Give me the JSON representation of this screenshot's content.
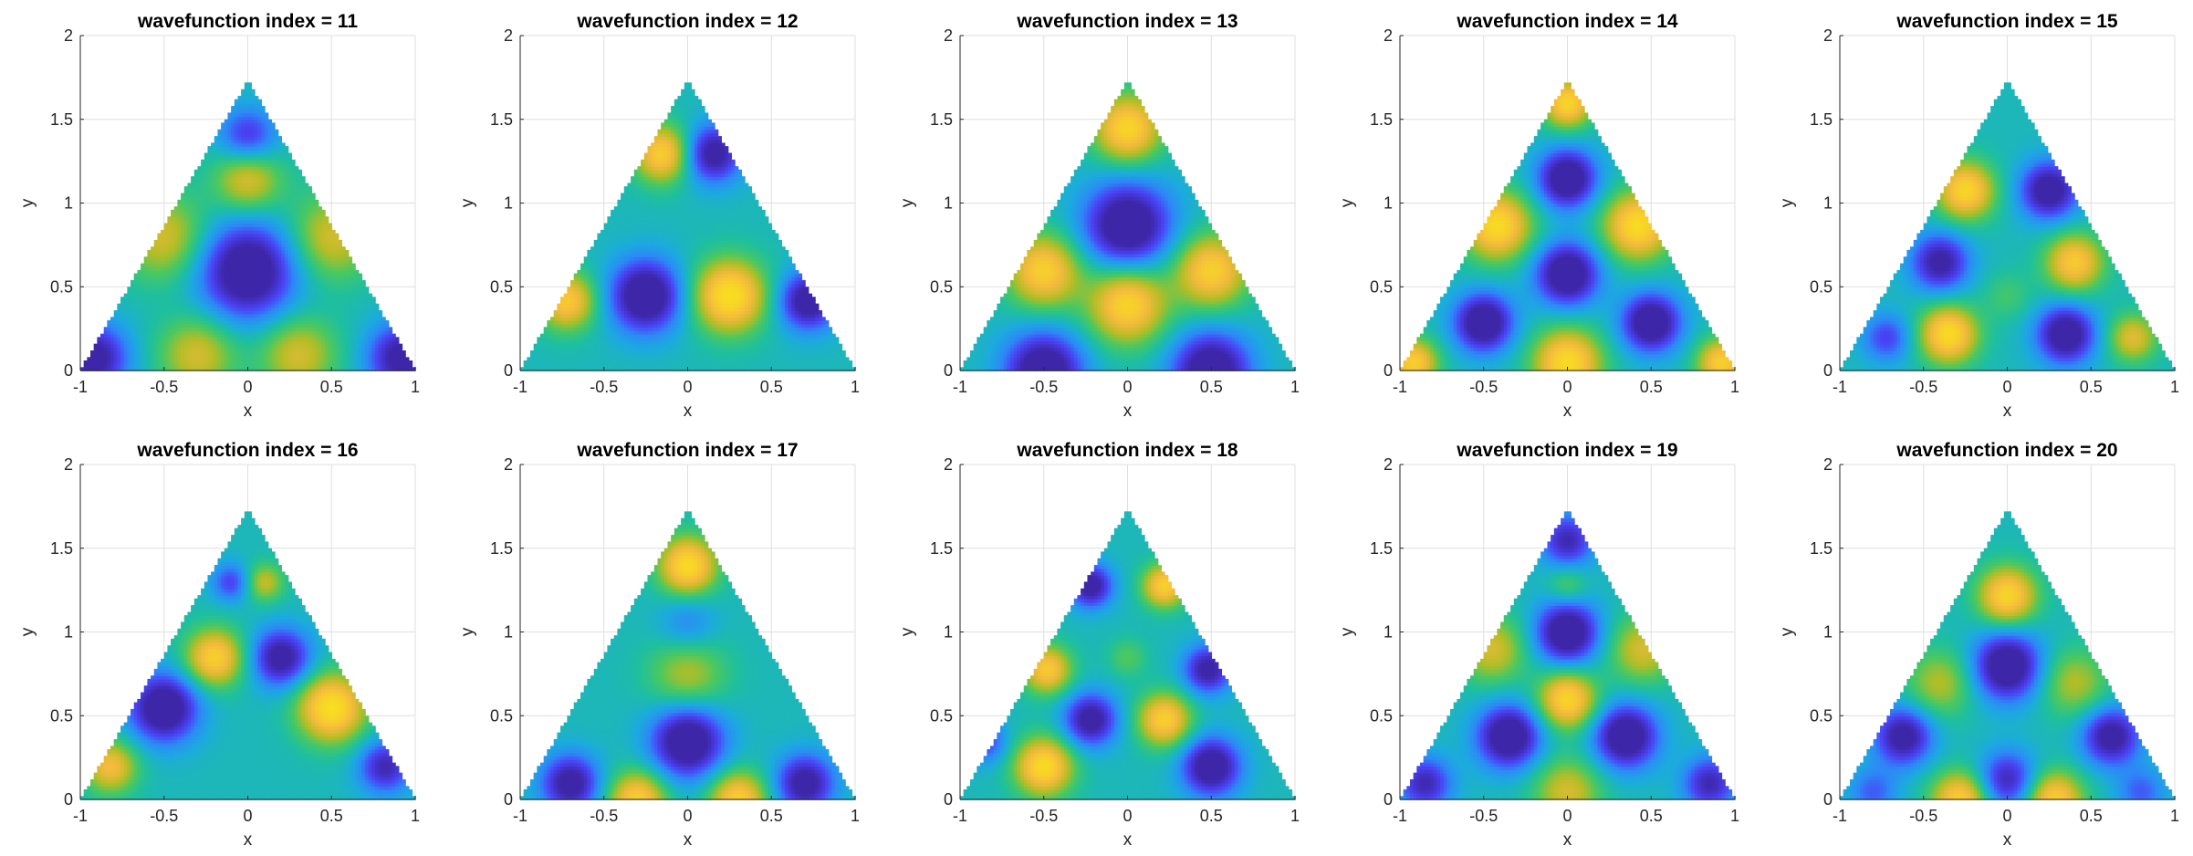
{
  "colormap": [
    "#3e26a8",
    "#4a42f4",
    "#2e87f7",
    "#1caadf",
    "#1ebf9f",
    "#4ac860",
    "#b3bd26",
    "#f4ba3d",
    "#f9e01e",
    "#f9fb0e"
  ],
  "chart_data": [
    {
      "type": "heatmap",
      "title": "wavefunction index = 11",
      "xlabel": "x",
      "ylabel": "y",
      "xlim": [
        -1,
        1
      ],
      "ylim": [
        0,
        2
      ],
      "xticks": [
        "-1",
        "-0.5",
        "0",
        "0.5",
        "1"
      ],
      "yticks": [
        "0",
        "0.5",
        "1",
        "1.5",
        "2"
      ],
      "grid": true,
      "domain": "triangle",
      "blobs": [
        [
          0,
          0.6,
          -1.0,
          0.2
        ],
        [
          -0.92,
          0.08,
          -0.85,
          0.14
        ],
        [
          0.92,
          0.08,
          -0.85,
          0.14
        ],
        [
          0,
          1.4,
          -0.6,
          0.12
        ],
        [
          -0.5,
          0.8,
          0.55,
          0.18
        ],
        [
          0.5,
          0.8,
          0.55,
          0.18
        ],
        [
          0,
          1.15,
          0.6,
          0.14
        ],
        [
          -0.3,
          0.1,
          0.55,
          0.16
        ],
        [
          0.3,
          0.1,
          0.55,
          0.16
        ]
      ]
    },
    {
      "type": "heatmap",
      "title": "wavefunction index = 12",
      "xlabel": "x",
      "ylabel": "y",
      "xlim": [
        -1,
        1
      ],
      "ylim": [
        0,
        2
      ],
      "xticks": [
        "-1",
        "-0.5",
        "0",
        "0.5",
        "1"
      ],
      "yticks": [
        "0",
        "0.5",
        "1",
        "1.5",
        "2"
      ],
      "grid": true,
      "domain": "triangle",
      "blobs": [
        [
          -0.25,
          0.45,
          -1.0,
          0.15
        ],
        [
          0.25,
          0.45,
          1.0,
          0.15
        ],
        [
          0.72,
          0.42,
          -0.9,
          0.12
        ],
        [
          -0.72,
          0.42,
          0.8,
          0.12
        ],
        [
          -0.15,
          1.3,
          0.85,
          0.12
        ],
        [
          0.15,
          1.3,
          -0.85,
          0.12
        ]
      ]
    },
    {
      "type": "heatmap",
      "title": "wavefunction index = 13",
      "xlabel": "x",
      "ylabel": "y",
      "xlim": [
        -1,
        1
      ],
      "ylim": [
        0,
        2
      ],
      "xticks": [
        "-1",
        "-0.5",
        "0",
        "0.5",
        "1"
      ],
      "yticks": [
        "0",
        "0.5",
        "1",
        "1.5",
        "2"
      ],
      "grid": true,
      "domain": "triangle",
      "blobs": [
        [
          0,
          0.87,
          -1.0,
          0.18
        ],
        [
          -0.5,
          0.0,
          -1.0,
          0.16
        ],
        [
          0.5,
          0.0,
          -1.0,
          0.16
        ],
        [
          0,
          0.4,
          0.9,
          0.16
        ],
        [
          -0.5,
          0.6,
          0.85,
          0.15
        ],
        [
          0.5,
          0.6,
          0.85,
          0.15
        ],
        [
          0,
          1.45,
          0.9,
          0.14
        ]
      ]
    },
    {
      "type": "heatmap",
      "title": "wavefunction index = 14",
      "xlabel": "x",
      "ylabel": "y",
      "xlim": [
        -1,
        1
      ],
      "ylim": [
        0,
        2
      ],
      "xticks": [
        "-1",
        "-0.5",
        "0",
        "0.5",
        "1"
      ],
      "yticks": [
        "0",
        "0.5",
        "1",
        "1.5",
        "2"
      ],
      "grid": true,
      "domain": "triangle",
      "blobs": [
        [
          0,
          0.58,
          -1.0,
          0.13
        ],
        [
          0,
          1.15,
          -1.0,
          0.12
        ],
        [
          -0.5,
          0.29,
          -1.0,
          0.12
        ],
        [
          0.5,
          0.29,
          -1.0,
          0.12
        ],
        [
          -0.42,
          0.87,
          0.95,
          0.14
        ],
        [
          0.42,
          0.87,
          0.95,
          0.14
        ],
        [
          0,
          0.05,
          0.95,
          0.14
        ],
        [
          0,
          1.6,
          0.9,
          0.1
        ],
        [
          -0.92,
          0.05,
          0.85,
          0.1
        ],
        [
          0.92,
          0.05,
          0.85,
          0.1
        ]
      ]
    },
    {
      "type": "heatmap",
      "title": "wavefunction index = 15",
      "xlabel": "x",
      "ylabel": "y",
      "xlim": [
        -1,
        1
      ],
      "ylim": [
        0,
        2
      ],
      "xticks": [
        "-1",
        "-0.5",
        "0",
        "0.5",
        "1"
      ],
      "yticks": [
        "0",
        "0.5",
        "1",
        "1.5",
        "2"
      ],
      "grid": true,
      "domain": "triangle",
      "blobs": [
        [
          -0.25,
          1.08,
          0.9,
          0.12
        ],
        [
          0.25,
          1.08,
          -0.9,
          0.12
        ],
        [
          -0.4,
          0.65,
          -0.8,
          0.12
        ],
        [
          0.4,
          0.65,
          0.8,
          0.12
        ],
        [
          -0.35,
          0.22,
          0.95,
          0.12
        ],
        [
          0.35,
          0.22,
          -0.95,
          0.12
        ],
        [
          -0.72,
          0.2,
          -0.5,
          0.1
        ],
        [
          0.75,
          0.2,
          0.6,
          0.1
        ],
        [
          0,
          0.45,
          0.2,
          0.1
        ]
      ]
    },
    {
      "type": "heatmap",
      "title": "wavefunction index = 16",
      "xlabel": "x",
      "ylabel": "y",
      "xlim": [
        -1,
        1
      ],
      "ylim": [
        0,
        2
      ],
      "xticks": [
        "-1",
        "-0.5",
        "0",
        "0.5",
        "1"
      ],
      "yticks": [
        "0",
        "0.5",
        "1",
        "1.5",
        "2"
      ],
      "grid": true,
      "domain": "triangle",
      "blobs": [
        [
          -0.5,
          0.55,
          -1.0,
          0.14
        ],
        [
          0.5,
          0.55,
          1.0,
          0.14
        ],
        [
          -0.2,
          0.85,
          0.85,
          0.12
        ],
        [
          0.2,
          0.85,
          -0.85,
          0.12
        ],
        [
          -0.82,
          0.2,
          0.7,
          0.11
        ],
        [
          0.82,
          0.2,
          -0.7,
          0.11
        ],
        [
          -0.1,
          1.3,
          -0.5,
          0.08
        ],
        [
          0.1,
          1.3,
          0.5,
          0.08
        ]
      ]
    },
    {
      "type": "heatmap",
      "title": "wavefunction index = 17",
      "xlabel": "x",
      "ylabel": "y",
      "xlim": [
        -1,
        1
      ],
      "ylim": [
        0,
        2
      ],
      "xticks": [
        "-1",
        "-0.5",
        "0",
        "0.5",
        "1"
      ],
      "yticks": [
        "0",
        "0.5",
        "1",
        "1.5",
        "2"
      ],
      "grid": true,
      "domain": "triangle",
      "blobs": [
        [
          0,
          0.35,
          -1.0,
          0.15
        ],
        [
          0,
          1.4,
          0.95,
          0.12
        ],
        [
          -0.7,
          0.1,
          -0.85,
          0.12
        ],
        [
          0.7,
          0.1,
          -0.85,
          0.12
        ],
        [
          -0.3,
          0.0,
          0.85,
          0.12
        ],
        [
          0.3,
          0.0,
          0.85,
          0.12
        ],
        [
          0,
          0.75,
          0.45,
          0.16
        ],
        [
          0,
          1.05,
          -0.3,
          0.12
        ]
      ]
    },
    {
      "type": "heatmap",
      "title": "wavefunction index = 18",
      "xlabel": "x",
      "ylabel": "y",
      "xlim": [
        -1,
        1
      ],
      "ylim": [
        0,
        2
      ],
      "xticks": [
        "-1",
        "-0.5",
        "0",
        "0.5",
        "1"
      ],
      "yticks": [
        "0",
        "0.5",
        "1",
        "1.5",
        "2"
      ],
      "grid": true,
      "domain": "triangle",
      "blobs": [
        [
          -0.5,
          0.2,
          0.95,
          0.12
        ],
        [
          0.5,
          0.2,
          -0.95,
          0.12
        ],
        [
          -0.22,
          0.48,
          -0.85,
          0.11
        ],
        [
          0.22,
          0.48,
          0.85,
          0.11
        ],
        [
          -0.48,
          0.78,
          0.8,
          0.1
        ],
        [
          0.48,
          0.78,
          -0.8,
          0.1
        ],
        [
          -0.22,
          1.28,
          -0.85,
          0.09
        ],
        [
          0.22,
          1.28,
          0.85,
          0.09
        ],
        [
          -0.85,
          0.35,
          -0.5,
          0.09
        ],
        [
          0,
          0.85,
          0.25,
          0.08
        ]
      ]
    },
    {
      "type": "heatmap",
      "title": "wavefunction index = 19",
      "xlabel": "x",
      "ylabel": "y",
      "xlim": [
        -1,
        1
      ],
      "ylim": [
        0,
        2
      ],
      "xticks": [
        "-1",
        "-0.5",
        "0",
        "0.5",
        "1"
      ],
      "yticks": [
        "0",
        "0.5",
        "1",
        "1.5",
        "2"
      ],
      "grid": true,
      "domain": "triangle",
      "blobs": [
        [
          0,
          1.0,
          -1.0,
          0.13
        ],
        [
          -0.35,
          0.38,
          -1.0,
          0.13
        ],
        [
          0.35,
          0.38,
          -1.0,
          0.13
        ],
        [
          0,
          0.6,
          0.9,
          0.12
        ],
        [
          -0.85,
          0.1,
          -0.7,
          0.11
        ],
        [
          0.85,
          0.1,
          -0.7,
          0.11
        ],
        [
          0,
          1.55,
          -0.7,
          0.11
        ],
        [
          -0.45,
          0.9,
          0.55,
          0.14
        ],
        [
          0.45,
          0.9,
          0.55,
          0.14
        ],
        [
          0,
          0.05,
          0.55,
          0.14
        ],
        [
          0,
          1.28,
          0.3,
          0.08
        ]
      ]
    },
    {
      "type": "heatmap",
      "title": "wavefunction index = 20",
      "xlabel": "x",
      "ylabel": "y",
      "xlim": [
        -1,
        1
      ],
      "ylim": [
        0,
        2
      ],
      "xticks": [
        "-1",
        "-0.5",
        "0",
        "0.5",
        "1"
      ],
      "yticks": [
        "0",
        "0.5",
        "1",
        "1.5",
        "2"
      ],
      "grid": true,
      "domain": "triangle",
      "blobs": [
        [
          0,
          0.8,
          -1.0,
          0.14
        ],
        [
          0,
          1.22,
          0.9,
          0.12
        ],
        [
          -0.62,
          0.38,
          -0.85,
          0.12
        ],
        [
          0.62,
          0.38,
          -0.85,
          0.12
        ],
        [
          -0.28,
          0.0,
          0.85,
          0.12
        ],
        [
          0.28,
          0.0,
          0.85,
          0.12
        ],
        [
          0,
          0.12,
          -0.7,
          0.12
        ],
        [
          -0.4,
          0.7,
          0.45,
          0.14
        ],
        [
          0.4,
          0.7,
          0.45,
          0.14
        ],
        [
          -0.8,
          0.05,
          -0.4,
          0.1
        ],
        [
          0.8,
          0.05,
          -0.4,
          0.1
        ]
      ]
    }
  ]
}
